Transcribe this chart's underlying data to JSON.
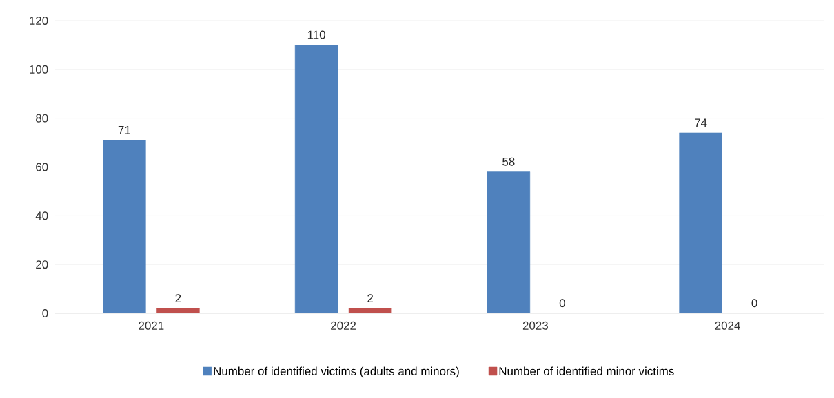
{
  "chart_data": {
    "type": "bar",
    "categories": [
      "2021",
      "2022",
      "2023",
      "2024"
    ],
    "series": [
      {
        "name": "Number of identified victims (adults and minors)",
        "color": "#4f81bd",
        "values": [
          71,
          110,
          58,
          74
        ]
      },
      {
        "name": "Number of identified minor victims",
        "color": "#c0504d",
        "values": [
          2,
          2,
          0,
          0
        ]
      }
    ],
    "ylim": [
      0,
      120
    ],
    "yticks": [
      0,
      20,
      40,
      60,
      80,
      100,
      120
    ],
    "grid": "y",
    "legend": "bottom",
    "data_labels": true
  }
}
